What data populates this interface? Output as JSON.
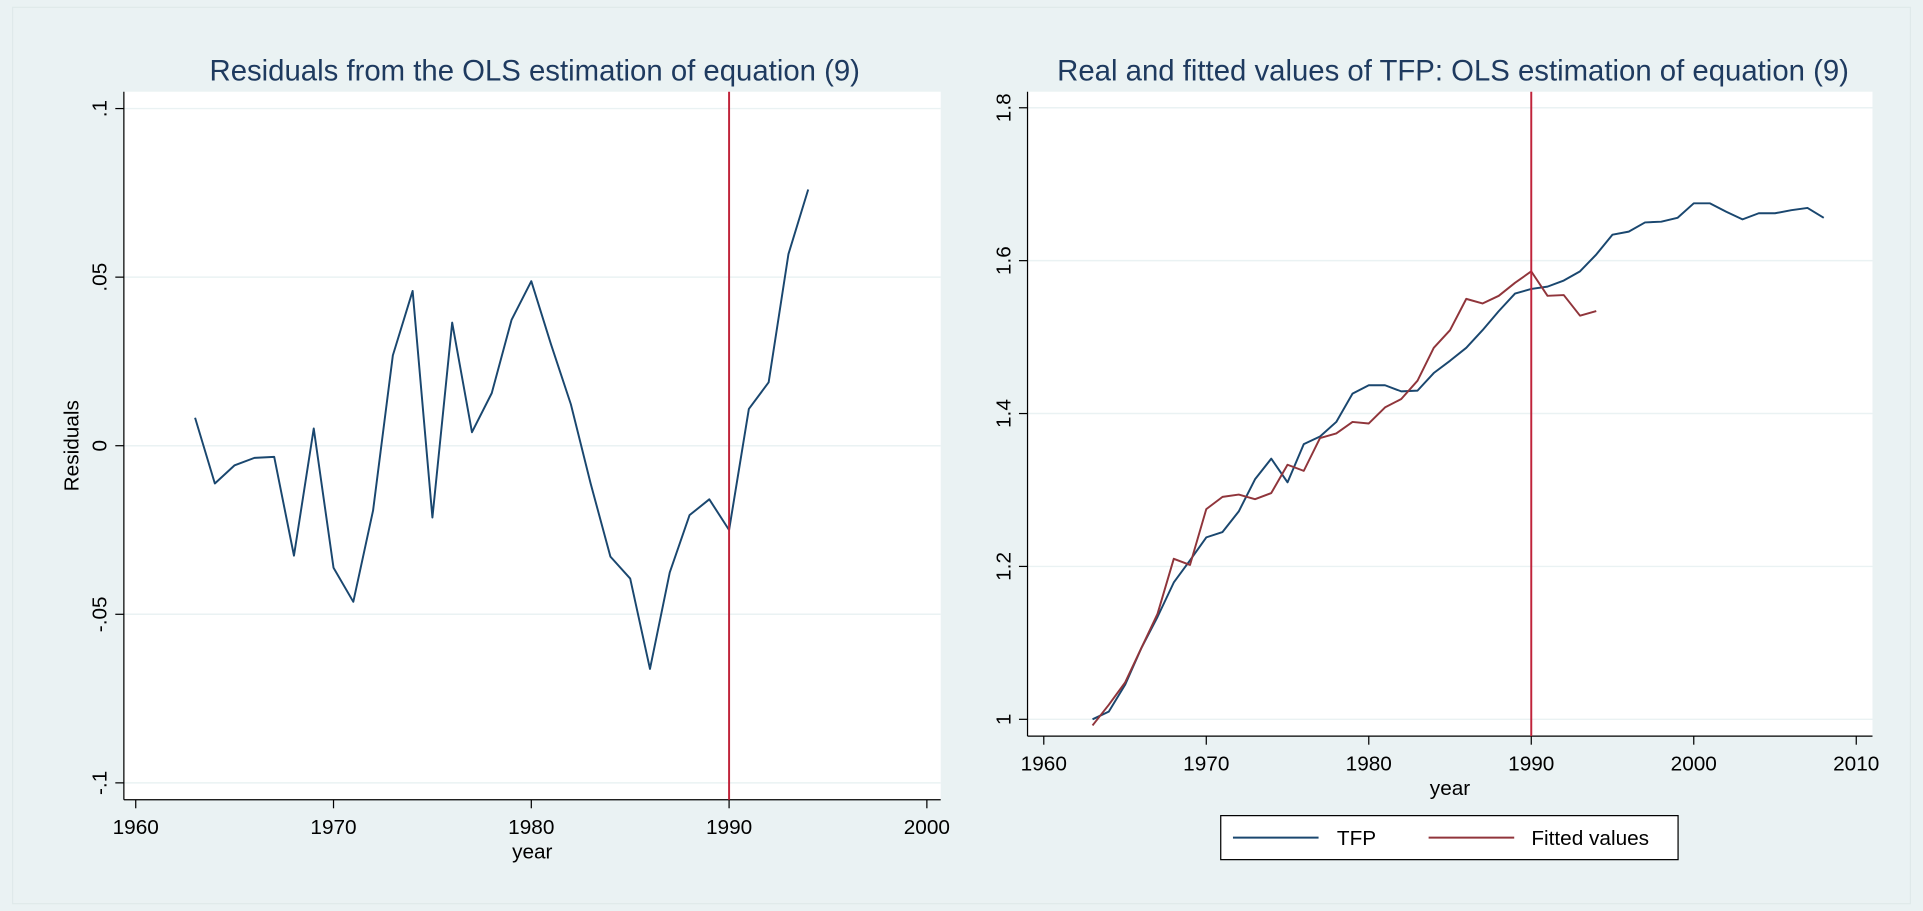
{
  "chart_data": [
    {
      "type": "line",
      "title": "Residuals from the OLS estimation of equation (9)",
      "xlabel": "year",
      "ylabel": "Residuals",
      "x": [
        1963,
        1964,
        1965,
        1966,
        1967,
        1968,
        1969,
        1970,
        1971,
        1972,
        1973,
        1974,
        1975,
        1976,
        1977,
        1978,
        1979,
        1980,
        1981,
        1982,
        1983,
        1984,
        1985,
        1986,
        1987,
        1988,
        1989,
        1990,
        1991,
        1992,
        1993,
        1994
      ],
      "values": [
        0.0083,
        -0.0112,
        -0.0058,
        -0.0036,
        -0.0033,
        -0.0326,
        0.0051,
        -0.0362,
        -0.0463,
        -0.0192,
        0.0268,
        0.0459,
        -0.0213,
        0.0365,
        0.004,
        0.0156,
        0.0373,
        0.0488,
        0.03,
        0.0123,
        -0.0112,
        -0.0329,
        -0.0394,
        -0.0662,
        -0.0376,
        -0.0206,
        -0.0159,
        -0.025,
        0.0109,
        0.0188,
        0.0568,
        0.076
      ],
      "color": "#1a476f",
      "xlim": [
        1959.4,
        2000.7
      ],
      "xticks": [
        1960,
        1970,
        1980,
        1990,
        2000
      ],
      "ylim": [
        -0.105,
        0.105
      ],
      "yticks": [
        {
          "value": -0.1,
          "label": "-.1"
        },
        {
          "value": -0.05,
          "label": "-.05"
        },
        {
          "value": 0,
          "label": "0"
        },
        {
          "value": 0.05,
          "label": ".05"
        },
        {
          "value": 0.1,
          "label": ".1"
        }
      ],
      "grid": true,
      "vline": 1990,
      "vline_color": "#c0233a"
    },
    {
      "type": "line",
      "title": "Real and fitted values of TFP: OLS estimation of equation (9)",
      "xlabel": "year",
      "x": [
        1963,
        1964,
        1965,
        1966,
        1967,
        1968,
        1969,
        1970,
        1971,
        1972,
        1973,
        1974,
        1975,
        1976,
        1977,
        1978,
        1979,
        1980,
        1981,
        1982,
        1983,
        1984,
        1985,
        1986,
        1987,
        1988,
        1989,
        1990,
        1991,
        1992,
        1993,
        1994,
        1995,
        1996,
        1997,
        1998,
        1999,
        2000,
        2001,
        2002,
        2003,
        2004,
        2005,
        2006,
        2007,
        2008
      ],
      "series": [
        {
          "name": "TFP",
          "color": "#1a476f",
          "values": [
            1.0,
            1.01,
            1.045,
            1.093,
            1.134,
            1.179,
            1.208,
            1.238,
            1.245,
            1.272,
            1.314,
            1.341,
            1.31,
            1.36,
            1.37,
            1.389,
            1.426,
            1.437,
            1.437,
            1.429,
            1.43,
            1.453,
            1.469,
            1.486,
            1.509,
            1.534,
            1.557,
            1.563,
            1.566,
            1.574,
            1.586,
            1.608,
            1.634,
            1.638,
            1.65,
            1.651,
            1.656,
            1.675,
            1.675,
            1.664,
            1.654,
            1.662,
            1.662,
            1.666,
            1.669,
            1.656
          ]
        },
        {
          "name": "Fitted values",
          "color": "#90353b",
          "values": [
            0.992,
            1.019,
            1.048,
            1.093,
            1.138,
            1.21,
            1.202,
            1.275,
            1.291,
            1.294,
            1.288,
            1.296,
            1.333,
            1.325,
            1.368,
            1.374,
            1.389,
            1.387,
            1.408,
            1.419,
            1.443,
            1.486,
            1.509,
            1.55,
            1.544,
            1.554,
            1.571,
            1.586,
            1.554,
            1.555,
            1.528,
            1.534,
            null,
            null,
            null,
            null,
            null,
            null,
            null,
            null,
            null,
            null,
            null,
            null,
            null,
            null
          ]
        }
      ],
      "xlim": [
        1959,
        2011
      ],
      "xticks": [
        1960,
        1970,
        1980,
        1990,
        2000,
        2010
      ],
      "ylim": [
        0.978,
        1.821
      ],
      "yticks": [
        1,
        1.2,
        1.4,
        1.6,
        1.8
      ],
      "grid": true,
      "vline": 1990,
      "vline_color": "#c0233a",
      "legend": "bottom"
    }
  ]
}
